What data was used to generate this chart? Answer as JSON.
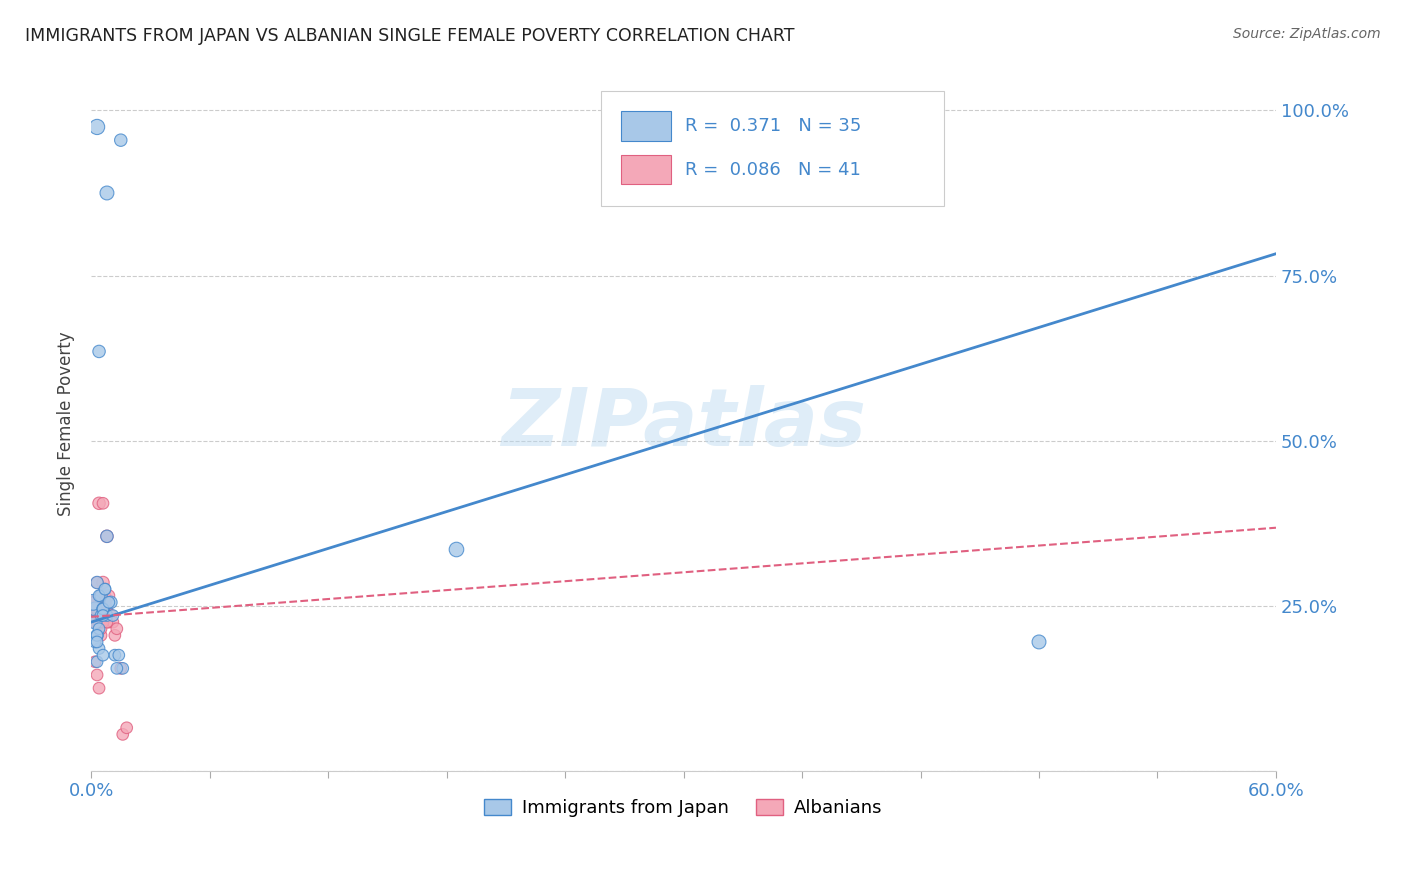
{
  "title": "IMMIGRANTS FROM JAPAN VS ALBANIAN SINGLE FEMALE POVERTY CORRELATION CHART",
  "source": "Source: ZipAtlas.com",
  "ylabel": "Single Female Poverty",
  "xlim": [
    0.0,
    0.6
  ],
  "ylim": [
    0.0,
    1.05
  ],
  "ytick_positions": [
    0.0,
    0.25,
    0.5,
    0.75,
    1.0
  ],
  "ytick_labels": [
    "",
    "25.0%",
    "50.0%",
    "75.0%",
    "100.0%"
  ],
  "watermark": "ZIPatlas",
  "color_japan": "#a8c8e8",
  "color_albania": "#f4a8b8",
  "color_line_japan": "#4488cc",
  "color_line_albania": "#e06080",
  "japan_line_slope": 0.93,
  "japan_line_intercept": 0.225,
  "albania_line_slope": 0.225,
  "albania_line_intercept": 0.233,
  "japan_scatter_x": [
    0.003,
    0.008,
    0.015,
    0.004,
    0.002,
    0.001,
    0.002,
    0.003,
    0.004,
    0.005,
    0.006,
    0.007,
    0.008,
    0.01,
    0.012,
    0.003,
    0.004,
    0.005,
    0.006,
    0.003,
    0.002,
    0.004,
    0.006,
    0.008,
    0.185,
    0.48,
    0.003,
    0.007,
    0.009,
    0.011,
    0.014,
    0.016,
    0.013,
    0.006,
    0.003
  ],
  "japan_scatter_y": [
    0.975,
    0.875,
    0.955,
    0.635,
    0.245,
    0.255,
    0.225,
    0.205,
    0.185,
    0.265,
    0.245,
    0.275,
    0.235,
    0.255,
    0.175,
    0.285,
    0.265,
    0.235,
    0.245,
    0.165,
    0.195,
    0.215,
    0.235,
    0.355,
    0.335,
    0.195,
    0.205,
    0.275,
    0.255,
    0.235,
    0.175,
    0.155,
    0.155,
    0.175,
    0.195
  ],
  "japan_sizes": [
    120,
    100,
    80,
    80,
    100,
    130,
    100,
    80,
    70,
    80,
    80,
    70,
    70,
    80,
    70,
    80,
    70,
    70,
    70,
    70,
    70,
    70,
    70,
    80,
    110,
    100,
    70,
    70,
    70,
    70,
    70,
    70,
    70,
    70,
    70
  ],
  "albania_scatter_x": [
    0.001,
    0.002,
    0.004,
    0.006,
    0.008,
    0.003,
    0.004,
    0.005,
    0.006,
    0.007,
    0.002,
    0.003,
    0.004,
    0.005,
    0.009,
    0.012,
    0.015,
    0.003,
    0.004,
    0.005,
    0.002,
    0.003,
    0.004,
    0.005,
    0.006,
    0.007,
    0.008,
    0.009,
    0.01,
    0.011,
    0.013,
    0.016,
    0.018,
    0.003,
    0.005,
    0.007,
    0.003,
    0.002,
    0.004,
    0.006,
    0.008
  ],
  "albania_scatter_y": [
    0.245,
    0.255,
    0.405,
    0.405,
    0.355,
    0.225,
    0.255,
    0.235,
    0.285,
    0.265,
    0.255,
    0.235,
    0.245,
    0.265,
    0.225,
    0.205,
    0.155,
    0.245,
    0.225,
    0.205,
    0.165,
    0.145,
    0.125,
    0.215,
    0.235,
    0.255,
    0.245,
    0.265,
    0.235,
    0.225,
    0.215,
    0.055,
    0.065,
    0.285,
    0.225,
    0.255,
    0.225,
    0.225,
    0.225,
    0.225,
    0.225
  ],
  "albania_sizes": [
    130,
    110,
    80,
    70,
    80,
    80,
    70,
    80,
    80,
    70,
    80,
    70,
    70,
    80,
    70,
    70,
    70,
    80,
    70,
    70,
    70,
    70,
    70,
    70,
    70,
    80,
    70,
    70,
    70,
    70,
    70,
    70,
    70,
    70,
    70,
    70,
    70,
    70,
    70,
    70,
    70
  ]
}
